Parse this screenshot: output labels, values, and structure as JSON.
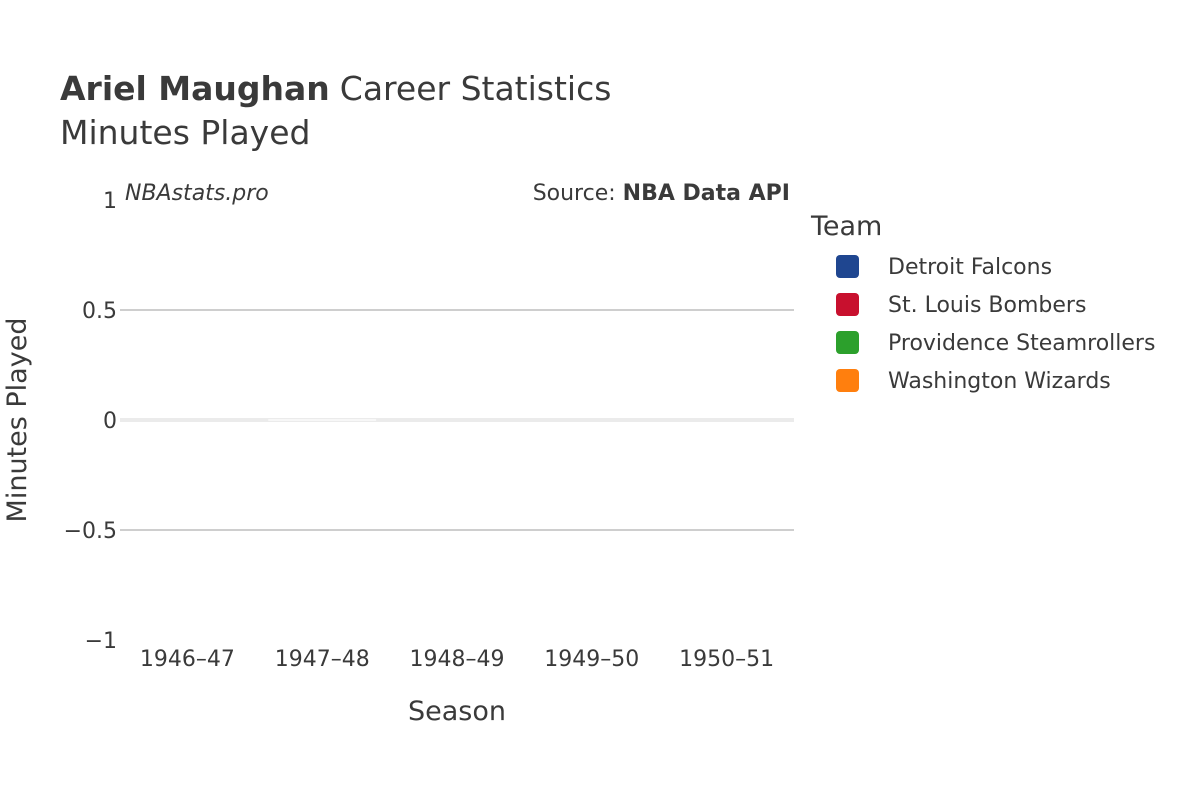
{
  "title": {
    "player": "Ariel Maughan",
    "rest": "Career Statistics",
    "subtitle": "Minutes Played"
  },
  "watermark": "NBAstats.pro",
  "source": {
    "prefix": "Source: ",
    "name": "NBA Data API"
  },
  "legend": {
    "title": "Team"
  },
  "chart_data": {
    "type": "bar",
    "categories": [
      "1946–47",
      "1947–48",
      "1948–49",
      "1949–50",
      "1950–51"
    ],
    "series": [
      {
        "name": "Detroit Falcons",
        "color": "#1f4690",
        "values": [
          null,
          null,
          null,
          null,
          null
        ]
      },
      {
        "name": "St. Louis Bombers",
        "color": "#c8102e",
        "values": [
          null,
          null,
          null,
          null,
          null
        ]
      },
      {
        "name": "Providence Steamrollers",
        "color": "#2ca02c",
        "values": [
          null,
          null,
          null,
          null,
          null
        ]
      },
      {
        "name": "Washington Wizards",
        "color": "#ff7f0e",
        "values": [
          null,
          null,
          null,
          null,
          null
        ]
      }
    ],
    "zero_bar": {
      "category": "1947–48",
      "value": 0
    },
    "xlabel": "Season",
    "ylabel": "Minutes Played",
    "ylim": [
      -1,
      1
    ],
    "yticks": [
      1,
      0.5,
      0,
      -0.5,
      -1
    ],
    "ytick_labels": [
      "1",
      "0.5",
      "0",
      "−0.5",
      "−1"
    ],
    "grid": true,
    "legend_position": "right"
  }
}
